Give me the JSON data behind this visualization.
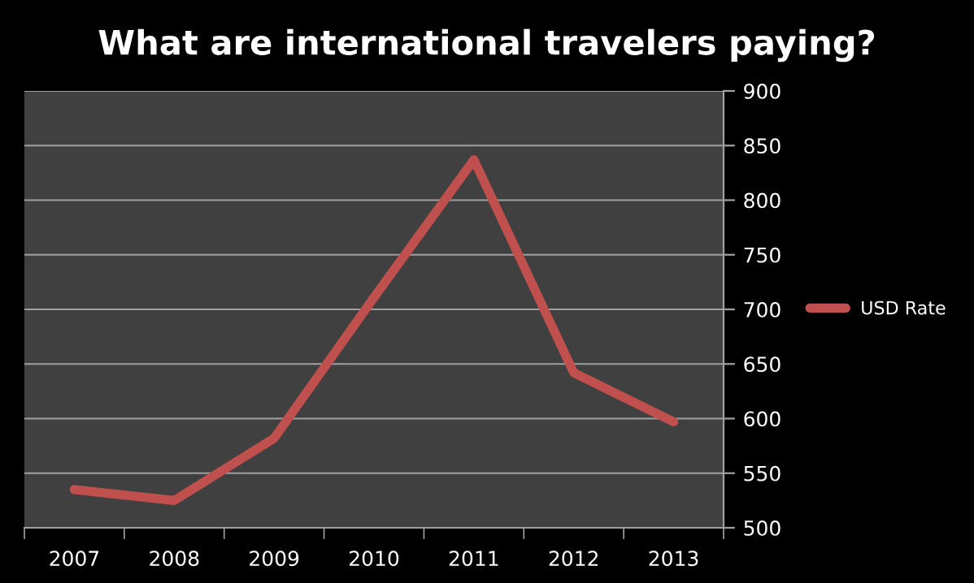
{
  "chart_data": {
    "type": "line",
    "title": "What are international travelers paying?",
    "categories": [
      "2007",
      "2008",
      "2009",
      "2010",
      "2011",
      "2012",
      "2013"
    ],
    "series": [
      {
        "name": "USD Rate",
        "color": "#c0504d",
        "values": [
          535,
          525,
          582,
          711,
          837,
          642,
          597
        ]
      }
    ],
    "ylim": [
      500,
      900
    ],
    "yticks": [
      500,
      550,
      600,
      650,
      700,
      750,
      800,
      850,
      900
    ],
    "grid": "y",
    "legend": "right",
    "marker": "none",
    "line_style": "solid"
  }
}
